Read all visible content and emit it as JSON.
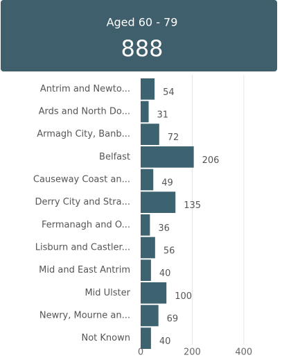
{
  "card": {
    "label": "Aged 60 - 79",
    "value": 888,
    "color": "#3e5f6b"
  },
  "chart_data": {
    "type": "bar",
    "orientation": "horizontal",
    "categories": [
      "Antrim and Newto...",
      "Ards and North Do...",
      "Armagh City, Banb...",
      "Belfast",
      "Causeway Coast an...",
      "Derry City and Stra...",
      "Fermanagh and O...",
      "Lisburn and Castler...",
      "Mid and East Antrim",
      "Mid Ulster",
      "Newry, Mourne an...",
      "Not Known"
    ],
    "values": [
      54,
      31,
      72,
      206,
      49,
      135,
      36,
      56,
      40,
      100,
      69,
      40
    ],
    "color": "#3d6370",
    "xlim": [
      0,
      500
    ],
    "xticks": [
      0,
      200,
      400
    ],
    "grid": true
  }
}
